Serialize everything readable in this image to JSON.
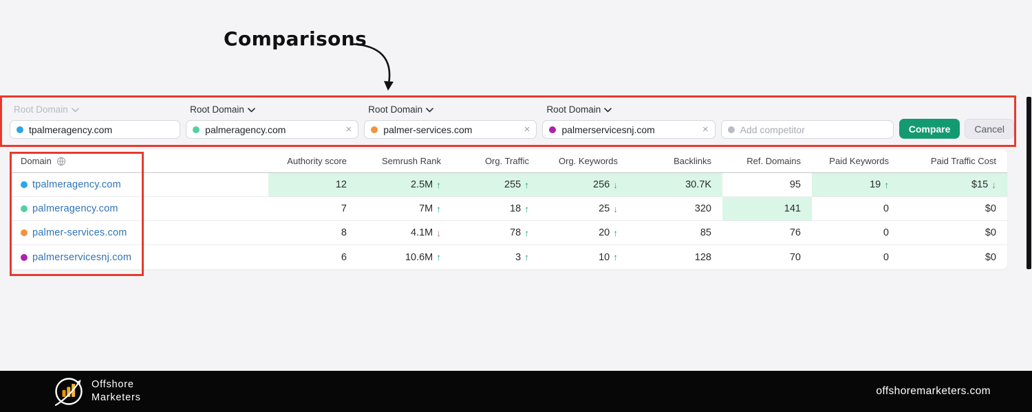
{
  "page": {
    "background": "#f4f4f6",
    "annotation_red": "#e8392e",
    "highlight_green": "#d9f6e7",
    "up_arrow_color": "#1fa37c",
    "down_arrow_color": "#cd5c71",
    "link_color": "#3173b5",
    "compare_button_color": "#149a70"
  },
  "annotation": {
    "title": "Comparisons"
  },
  "comparison_bar": {
    "slots": [
      {
        "label": "Root Domain",
        "value": "tpalmeragency.com",
        "dot_color": "#2ba6e8",
        "muted_label": true,
        "clearable": false
      },
      {
        "label": "Root Domain",
        "value": "palmeragency.com",
        "dot_color": "#52d0a0",
        "muted_label": false,
        "clearable": true
      },
      {
        "label": "Root Domain",
        "value": "palmer-services.com",
        "dot_color": "#f2933d",
        "muted_label": false,
        "clearable": true
      },
      {
        "label": "Root Domain",
        "value": "palmerservicesnj.com",
        "dot_color": "#b01fae",
        "muted_label": false,
        "clearable": true
      }
    ],
    "add_competitor_placeholder": "Add competitor",
    "add_competitor_dot_color": "#b9bcc4",
    "compare_label": "Compare",
    "cancel_label": "Cancel",
    "clear_icon": "×",
    "chevron_icon": "chevron-down"
  },
  "table": {
    "columns": [
      "Domain",
      "Authority score",
      "Semrush Rank",
      "Org. Traffic",
      "Org. Keywords",
      "Backlinks",
      "Ref. Domains",
      "Paid Keywords",
      "Paid Traffic Cost"
    ],
    "rows": [
      {
        "domain": "tpalmeragency.com",
        "dot_color": "#2ba6e8",
        "cells": [
          {
            "v": "12",
            "h": true
          },
          {
            "v": "2.5M",
            "a": "up",
            "h": true
          },
          {
            "v": "255",
            "a": "up",
            "h": true
          },
          {
            "v": "256",
            "a": "down",
            "h": true
          },
          {
            "v": "30.7K",
            "h": true
          },
          {
            "v": "95",
            "h": false
          },
          {
            "v": "19",
            "a": "up",
            "h": true
          },
          {
            "v": "$15",
            "a": "down",
            "h": true
          }
        ]
      },
      {
        "domain": "palmeragency.com",
        "dot_color": "#52d0a0",
        "cells": [
          {
            "v": "7"
          },
          {
            "v": "7M",
            "a": "up"
          },
          {
            "v": "18",
            "a": "up"
          },
          {
            "v": "25",
            "a": "down"
          },
          {
            "v": "320"
          },
          {
            "v": "141",
            "h": true
          },
          {
            "v": "0"
          },
          {
            "v": "$0"
          }
        ]
      },
      {
        "domain": "palmer-services.com",
        "dot_color": "#f2933d",
        "cells": [
          {
            "v": "8"
          },
          {
            "v": "4.1M",
            "a": "down"
          },
          {
            "v": "78",
            "a": "up"
          },
          {
            "v": "20",
            "a": "up"
          },
          {
            "v": "85"
          },
          {
            "v": "76"
          },
          {
            "v": "0"
          },
          {
            "v": "$0"
          }
        ]
      },
      {
        "domain": "palmerservicesnj.com",
        "dot_color": "#b01fae",
        "cells": [
          {
            "v": "6"
          },
          {
            "v": "10.6M",
            "a": "up"
          },
          {
            "v": "3",
            "a": "up"
          },
          {
            "v": "10",
            "a": "up"
          },
          {
            "v": "128"
          },
          {
            "v": "70"
          },
          {
            "v": "0"
          },
          {
            "v": "$0"
          }
        ]
      }
    ]
  },
  "footer": {
    "brand_line1": "Offshore",
    "brand_line2": "Marketers",
    "website": "offshoremarketers.com"
  }
}
